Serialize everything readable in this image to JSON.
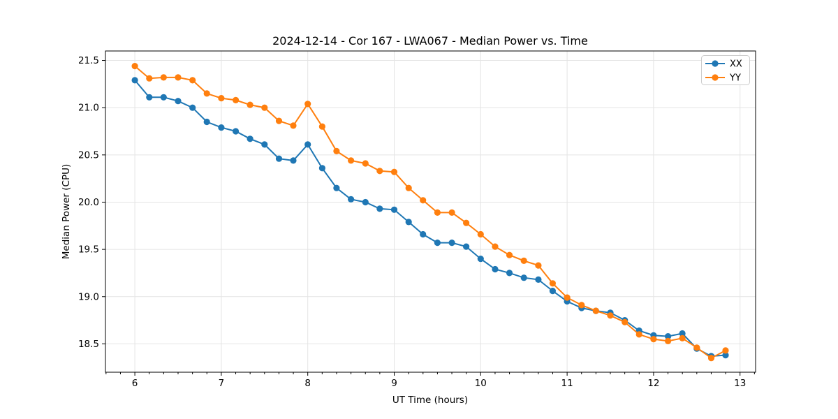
{
  "figure": {
    "background": "#ffffff"
  },
  "chart_data": {
    "type": "line",
    "title": "2024-12-14 - Cor 167 - LWA067 - Median Power vs. Time",
    "xlabel": "UT Time (hours)",
    "ylabel": "Median Power (CPU)",
    "xlim": [
      5.66,
      13.18
    ],
    "ylim": [
      18.2,
      21.6
    ],
    "grid": true,
    "legend_position": "upper right",
    "x_major_ticks": [
      6,
      7,
      8,
      9,
      10,
      11,
      12,
      13
    ],
    "x_tick_labels": [
      "6",
      "7",
      "8",
      "9",
      "10",
      "11",
      "12",
      "13"
    ],
    "x_minor_step": 0.1666667,
    "y_major_ticks": [
      18.5,
      19.0,
      19.5,
      20.0,
      20.5,
      21.0,
      21.5
    ],
    "y_tick_labels": [
      "18.5",
      "19.0",
      "19.5",
      "20.0",
      "20.5",
      "21.0",
      "21.5"
    ],
    "x": [
      6.0,
      6.167,
      6.333,
      6.5,
      6.667,
      6.833,
      7.0,
      7.167,
      7.333,
      7.5,
      7.667,
      7.833,
      8.0,
      8.167,
      8.333,
      8.5,
      8.667,
      8.833,
      9.0,
      9.167,
      9.333,
      9.5,
      9.667,
      9.833,
      10.0,
      10.167,
      10.333,
      10.5,
      10.667,
      10.833,
      11.0,
      11.167,
      11.333,
      11.5,
      11.667,
      11.833,
      12.0,
      12.167,
      12.333,
      12.5,
      12.667,
      12.833
    ],
    "series": [
      {
        "name": "XX",
        "color": "#1f77b4",
        "values": [
          21.29,
          21.11,
          21.11,
          21.07,
          21.0,
          20.85,
          20.79,
          20.75,
          20.67,
          20.61,
          20.46,
          20.44,
          20.61,
          20.36,
          20.15,
          20.03,
          20.0,
          19.93,
          19.92,
          19.79,
          19.66,
          19.57,
          19.57,
          19.53,
          19.4,
          19.29,
          19.25,
          19.2,
          19.18,
          19.06,
          18.95,
          18.88,
          18.85,
          18.83,
          18.75,
          18.64,
          18.59,
          18.58,
          18.61,
          18.45,
          18.37,
          18.38
        ]
      },
      {
        "name": "YY",
        "color": "#ff7f0e",
        "values": [
          21.44,
          21.31,
          21.32,
          21.32,
          21.29,
          21.15,
          21.1,
          21.08,
          21.03,
          21.0,
          20.86,
          20.81,
          21.04,
          20.8,
          20.54,
          20.44,
          20.41,
          20.33,
          20.32,
          20.15,
          20.02,
          19.89,
          19.89,
          19.78,
          19.66,
          19.53,
          19.44,
          19.38,
          19.33,
          19.14,
          18.99,
          18.91,
          18.85,
          18.8,
          18.73,
          18.6,
          18.55,
          18.53,
          18.56,
          18.46,
          18.35,
          18.43
        ]
      }
    ]
  }
}
